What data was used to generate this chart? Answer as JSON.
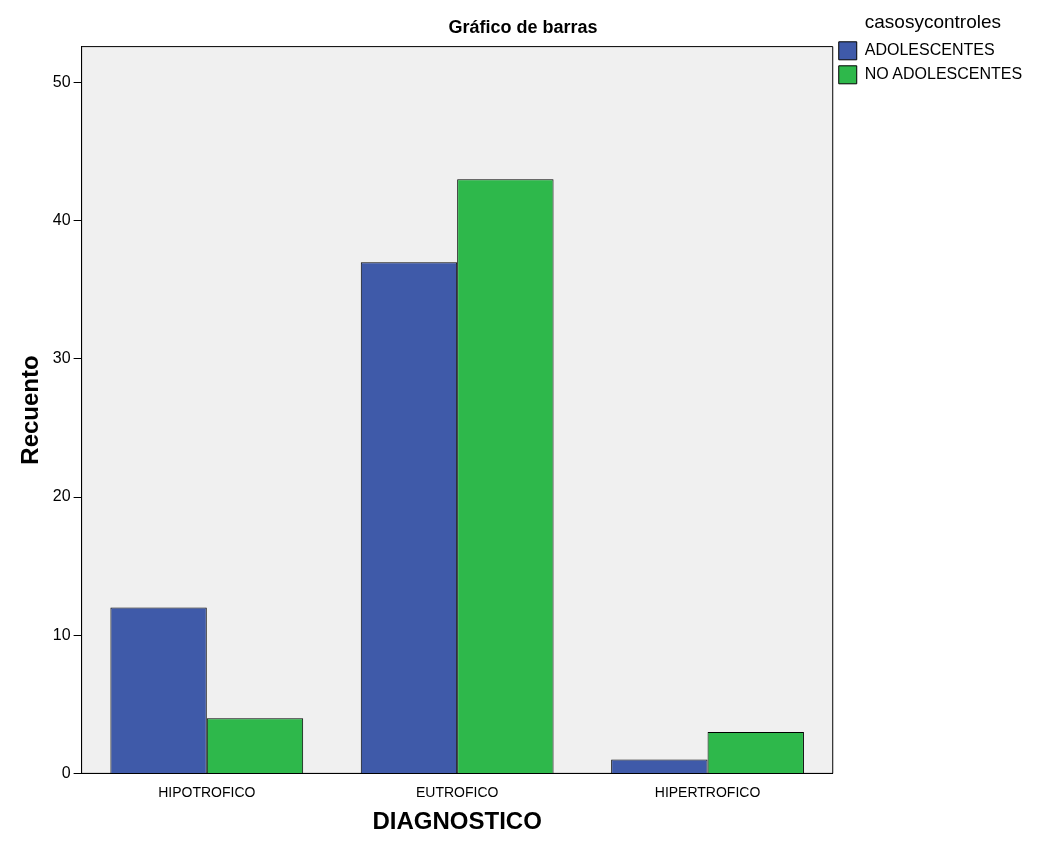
{
  "chart_data": {
    "type": "bar",
    "title": "Gráfico de barras",
    "xlabel": "DIAGNOSTICO",
    "ylabel": "Recuento",
    "legend_title": "casosycontroles",
    "categories": [
      "HIPOTROFICO",
      "EUTROFICO",
      "HIPERTROFICO"
    ],
    "series": [
      {
        "name": "ADOLESCENTES",
        "color": "#3f5aa9",
        "values": [
          12,
          37,
          1
        ]
      },
      {
        "name": "NO ADOLESCENTES",
        "color": "#2eb84b",
        "values": [
          4,
          43,
          3
        ]
      }
    ],
    "ylim": [
      0,
      52.6
    ],
    "yticks": [
      0,
      10,
      20,
      30,
      40,
      50
    ],
    "grid": false,
    "legend": "right"
  }
}
